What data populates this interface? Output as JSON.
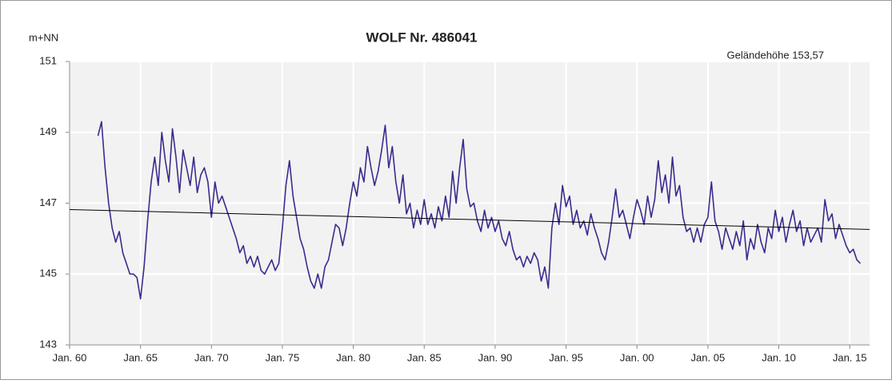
{
  "chart_data": {
    "type": "line",
    "title": "WOLF  Nr. 486041",
    "y_label": "m+NN",
    "annotation": "Geländehöhe 153,57",
    "annotation_color": "#3a9a3a",
    "grid": true,
    "xlim": [
      1960,
      2016.4
    ],
    "ylim": [
      143,
      151
    ],
    "yticks": [
      143,
      145,
      147,
      149,
      151
    ],
    "xticks": [
      {
        "value": 1960,
        "label": "Jan. 60"
      },
      {
        "value": 1965,
        "label": "Jan. 65"
      },
      {
        "value": 1970,
        "label": "Jan. 70"
      },
      {
        "value": 1975,
        "label": "Jan. 75"
      },
      {
        "value": 1980,
        "label": "Jan. 80"
      },
      {
        "value": 1985,
        "label": "Jan. 85"
      },
      {
        "value": 1990,
        "label": "Jan. 90"
      },
      {
        "value": 1995,
        "label": "Jan. 95"
      },
      {
        "value": 2000,
        "label": "Jan. 00"
      },
      {
        "value": 2005,
        "label": "Jan. 05"
      },
      {
        "value": 2010,
        "label": "Jan. 10"
      },
      {
        "value": 2015,
        "label": "Jan. 15"
      }
    ],
    "x": [
      1962.0,
      1962.25,
      1962.5,
      1962.75,
      1963.0,
      1963.25,
      1963.5,
      1963.75,
      1964.0,
      1964.25,
      1964.5,
      1964.75,
      1965.0,
      1965.25,
      1965.5,
      1965.75,
      1966.0,
      1966.25,
      1966.5,
      1966.75,
      1967.0,
      1967.25,
      1967.5,
      1967.75,
      1968.0,
      1968.25,
      1968.5,
      1968.75,
      1969.0,
      1969.25,
      1969.5,
      1969.75,
      1970.0,
      1970.25,
      1970.5,
      1970.75,
      1971.0,
      1971.25,
      1971.5,
      1971.75,
      1972.0,
      1972.25,
      1972.5,
      1972.75,
      1973.0,
      1973.25,
      1973.5,
      1973.75,
      1974.0,
      1974.25,
      1974.5,
      1974.75,
      1975.0,
      1975.25,
      1975.5,
      1975.75,
      1976.0,
      1976.25,
      1976.5,
      1976.75,
      1977.0,
      1977.25,
      1977.5,
      1977.75,
      1978.0,
      1978.25,
      1978.5,
      1978.75,
      1979.0,
      1979.25,
      1979.5,
      1979.75,
      1980.0,
      1980.25,
      1980.5,
      1980.75,
      1981.0,
      1981.25,
      1981.5,
      1981.75,
      1982.0,
      1982.25,
      1982.5,
      1982.75,
      1983.0,
      1983.25,
      1983.5,
      1983.75,
      1984.0,
      1984.25,
      1984.5,
      1984.75,
      1985.0,
      1985.25,
      1985.5,
      1985.75,
      1986.0,
      1986.25,
      1986.5,
      1986.75,
      1987.0,
      1987.25,
      1987.5,
      1987.75,
      1988.0,
      1988.25,
      1988.5,
      1988.75,
      1989.0,
      1989.25,
      1989.5,
      1989.75,
      1990.0,
      1990.25,
      1990.5,
      1990.75,
      1991.0,
      1991.25,
      1991.5,
      1991.75,
      1992.0,
      1992.25,
      1992.5,
      1992.75,
      1993.0,
      1993.25,
      1993.5,
      1993.75,
      1994.0,
      1994.25,
      1994.5,
      1994.75,
      1995.0,
      1995.25,
      1995.5,
      1995.75,
      1996.0,
      1996.25,
      1996.5,
      1996.75,
      1997.0,
      1997.25,
      1997.5,
      1997.75,
      1998.0,
      1998.25,
      1998.5,
      1998.75,
      1999.0,
      1999.25,
      1999.5,
      1999.75,
      2000.0,
      2000.25,
      2000.5,
      2000.75,
      2001.0,
      2001.25,
      2001.5,
      2001.75,
      2002.0,
      2002.25,
      2002.5,
      2002.75,
      2003.0,
      2003.25,
      2003.5,
      2003.75,
      2004.0,
      2004.25,
      2004.5,
      2004.75,
      2005.0,
      2005.25,
      2005.5,
      2005.75,
      2006.0,
      2006.25,
      2006.5,
      2006.75,
      2007.0,
      2007.25,
      2007.5,
      2007.75,
      2008.0,
      2008.25,
      2008.5,
      2008.75,
      2009.0,
      2009.25,
      2009.5,
      2009.75,
      2010.0,
      2010.25,
      2010.5,
      2010.75,
      2011.0,
      2011.25,
      2011.5,
      2011.75,
      2012.0,
      2012.25,
      2012.5,
      2012.75,
      2013.0,
      2013.25,
      2013.5,
      2013.75,
      2014.0,
      2014.25,
      2014.5,
      2014.75,
      2015.0,
      2015.25,
      2015.5,
      2015.75
    ],
    "series": [
      {
        "color": "#3d2a8e",
        "values": [
          148.9,
          149.3,
          148.0,
          147.0,
          146.3,
          145.9,
          146.2,
          145.6,
          145.3,
          145.0,
          145.0,
          144.9,
          144.3,
          145.2,
          146.5,
          147.6,
          148.3,
          147.5,
          149.0,
          148.2,
          147.6,
          149.1,
          148.3,
          147.3,
          148.5,
          148.0,
          147.5,
          148.3,
          147.3,
          147.8,
          148.0,
          147.6,
          146.6,
          147.6,
          147.0,
          147.2,
          146.9,
          146.6,
          146.3,
          146.0,
          145.6,
          145.8,
          145.3,
          145.5,
          145.2,
          145.5,
          145.1,
          145.0,
          145.2,
          145.4,
          145.1,
          145.3,
          146.3,
          147.5,
          148.2,
          147.2,
          146.6,
          146.0,
          145.7,
          145.2,
          144.8,
          144.6,
          145.0,
          144.6,
          145.2,
          145.4,
          145.9,
          146.4,
          146.3,
          145.8,
          146.3,
          147.0,
          147.6,
          147.2,
          148.0,
          147.6,
          148.6,
          148.0,
          147.5,
          147.9,
          148.5,
          149.2,
          148.0,
          148.6,
          147.6,
          147.0,
          147.8,
          146.7,
          147.0,
          146.3,
          146.8,
          146.4,
          147.1,
          146.4,
          146.7,
          146.3,
          146.9,
          146.5,
          147.2,
          146.6,
          147.9,
          147.0,
          148.0,
          148.8,
          147.4,
          146.9,
          147.0,
          146.5,
          146.2,
          146.8,
          146.3,
          146.6,
          146.2,
          146.5,
          146.0,
          145.8,
          146.2,
          145.7,
          145.4,
          145.5,
          145.2,
          145.5,
          145.3,
          145.6,
          145.4,
          144.8,
          145.2,
          144.6,
          146.3,
          147.0,
          146.4,
          147.5,
          146.9,
          147.2,
          146.4,
          146.8,
          146.3,
          146.5,
          146.1,
          146.7,
          146.3,
          146.0,
          145.6,
          145.4,
          145.9,
          146.6,
          147.4,
          146.6,
          146.8,
          146.4,
          146.0,
          146.6,
          147.1,
          146.8,
          146.4,
          147.2,
          146.6,
          147.1,
          148.2,
          147.3,
          147.8,
          147.0,
          148.3,
          147.2,
          147.5,
          146.6,
          146.2,
          146.3,
          145.9,
          146.3,
          145.9,
          146.4,
          146.6,
          147.6,
          146.5,
          146.2,
          145.7,
          146.3,
          146.0,
          145.7,
          146.2,
          145.8,
          146.5,
          145.4,
          146.0,
          145.7,
          146.4,
          145.9,
          145.6,
          146.3,
          146.0,
          146.8,
          146.2,
          146.6,
          145.9,
          146.4,
          146.8,
          146.2,
          146.5,
          145.8,
          146.3,
          145.9,
          146.1,
          146.3,
          145.9,
          147.1,
          146.5,
          146.7,
          146.0,
          146.4,
          146.1,
          145.8,
          145.6,
          145.7,
          145.4,
          145.3
        ]
      }
    ],
    "trend": {
      "color": "#000000",
      "x": [
        1960,
        2016.4
      ],
      "values": [
        146.82,
        146.26
      ]
    }
  }
}
